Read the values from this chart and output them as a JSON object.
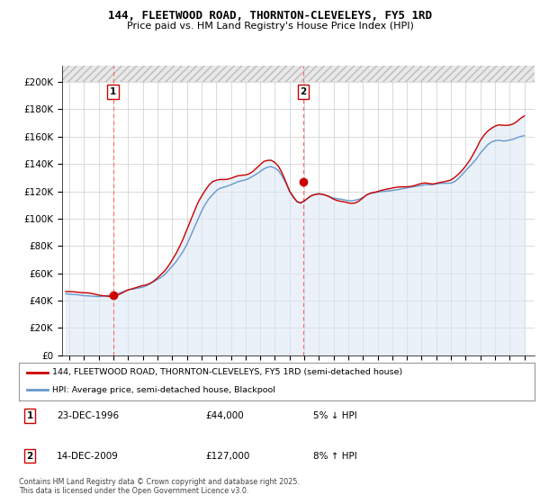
{
  "title": "144, FLEETWOOD ROAD, THORNTON-CLEVELEYS, FY5 1RD",
  "subtitle": "Price paid vs. HM Land Registry's House Price Index (HPI)",
  "ylabel_ticks": [
    "£0",
    "£20K",
    "£40K",
    "£60K",
    "£80K",
    "£100K",
    "£120K",
    "£140K",
    "£160K",
    "£180K",
    "£200K"
  ],
  "ytick_vals": [
    0,
    20000,
    40000,
    60000,
    80000,
    100000,
    120000,
    140000,
    160000,
    180000,
    200000
  ],
  "ymax": 200000,
  "ymin": 0,
  "sale1_price": 44000,
  "sale1_label": "1",
  "sale1_year": 1996.97,
  "sale2_price": 127000,
  "sale2_label": "2",
  "sale2_year": 2009.95,
  "legend_line1": "144, FLEETWOOD ROAD, THORNTON-CLEVELEYS, FY5 1RD (semi-detached house)",
  "legend_line2": "HPI: Average price, semi-detached house, Blackpool",
  "footnote": "Contains HM Land Registry data © Crown copyright and database right 2025.\nThis data is licensed under the Open Government Licence v3.0.",
  "line_color_red": "#cc0000",
  "line_color_blue": "#6699cc",
  "fill_color_blue": "#dce8f5",
  "marker_color_red": "#cc0000",
  "grid_color": "#cccccc",
  "vline_color": "#ff6666",
  "bg_color": "#ffffff",
  "xmin": 1993.5,
  "xmax": 2025.7,
  "hpi_data": [
    [
      1993.75,
      45500
    ],
    [
      1994.0,
      45200
    ],
    [
      1994.25,
      45000
    ],
    [
      1994.5,
      44800
    ],
    [
      1994.75,
      44500
    ],
    [
      1995.0,
      44000
    ],
    [
      1995.25,
      43800
    ],
    [
      1995.5,
      43500
    ],
    [
      1995.75,
      43200
    ],
    [
      1996.0,
      43000
    ],
    [
      1996.25,
      43200
    ],
    [
      1996.5,
      43500
    ],
    [
      1996.75,
      44000
    ],
    [
      1997.0,
      44500
    ],
    [
      1997.25,
      45200
    ],
    [
      1997.5,
      46000
    ],
    [
      1997.75,
      47000
    ],
    [
      1998.0,
      48000
    ],
    [
      1998.25,
      48500
    ],
    [
      1998.5,
      49000
    ],
    [
      1998.75,
      49500
    ],
    [
      1999.0,
      50000
    ],
    [
      1999.25,
      51000
    ],
    [
      1999.5,
      52500
    ],
    [
      1999.75,
      54000
    ],
    [
      2000.0,
      55500
    ],
    [
      2000.25,
      57000
    ],
    [
      2000.5,
      59000
    ],
    [
      2000.75,
      62000
    ],
    [
      2001.0,
      65000
    ],
    [
      2001.25,
      68000
    ],
    [
      2001.5,
      72000
    ],
    [
      2001.75,
      76000
    ],
    [
      2002.0,
      81000
    ],
    [
      2002.25,
      87000
    ],
    [
      2002.5,
      93000
    ],
    [
      2002.75,
      99000
    ],
    [
      2003.0,
      105000
    ],
    [
      2003.25,
      110000
    ],
    [
      2003.5,
      114000
    ],
    [
      2003.75,
      117000
    ],
    [
      2004.0,
      120000
    ],
    [
      2004.25,
      122000
    ],
    [
      2004.5,
      123000
    ],
    [
      2004.75,
      124000
    ],
    [
      2005.0,
      125000
    ],
    [
      2005.25,
      126000
    ],
    [
      2005.5,
      127000
    ],
    [
      2005.75,
      127500
    ],
    [
      2006.0,
      128000
    ],
    [
      2006.25,
      129000
    ],
    [
      2006.5,
      130500
    ],
    [
      2006.75,
      132000
    ],
    [
      2007.0,
      134000
    ],
    [
      2007.25,
      136000
    ],
    [
      2007.5,
      137500
    ],
    [
      2007.75,
      138000
    ],
    [
      2008.0,
      137000
    ],
    [
      2008.25,
      135000
    ],
    [
      2008.5,
      131000
    ],
    [
      2008.75,
      126000
    ],
    [
      2009.0,
      120000
    ],
    [
      2009.25,
      116000
    ],
    [
      2009.5,
      113000
    ],
    [
      2009.75,
      112000
    ],
    [
      2010.0,
      113000
    ],
    [
      2010.25,
      115000
    ],
    [
      2010.5,
      117000
    ],
    [
      2010.75,
      118000
    ],
    [
      2011.0,
      118500
    ],
    [
      2011.25,
      118000
    ],
    [
      2011.5,
      117000
    ],
    [
      2011.75,
      116000
    ],
    [
      2012.0,
      115000
    ],
    [
      2012.25,
      114500
    ],
    [
      2012.5,
      114000
    ],
    [
      2012.75,
      113500
    ],
    [
      2013.0,
      113000
    ],
    [
      2013.25,
      113000
    ],
    [
      2013.5,
      113500
    ],
    [
      2013.75,
      114000
    ],
    [
      2014.0,
      115000
    ],
    [
      2014.25,
      116500
    ],
    [
      2014.5,
      117500
    ],
    [
      2014.75,
      118000
    ],
    [
      2015.0,
      118500
    ],
    [
      2015.25,
      119000
    ],
    [
      2015.5,
      119500
    ],
    [
      2015.75,
      120000
    ],
    [
      2016.0,
      120500
    ],
    [
      2016.25,
      121000
    ],
    [
      2016.5,
      121500
    ],
    [
      2016.75,
      122000
    ],
    [
      2017.0,
      122500
    ],
    [
      2017.25,
      123000
    ],
    [
      2017.5,
      123500
    ],
    [
      2017.75,
      124000
    ],
    [
      2018.0,
      124500
    ],
    [
      2018.25,
      125000
    ],
    [
      2018.5,
      125000
    ],
    [
      2018.75,
      125000
    ],
    [
      2019.0,
      125500
    ],
    [
      2019.25,
      126000
    ],
    [
      2019.5,
      126000
    ],
    [
      2019.75,
      126000
    ],
    [
      2020.0,
      126000
    ],
    [
      2020.25,
      127000
    ],
    [
      2020.5,
      129000
    ],
    [
      2020.75,
      132000
    ],
    [
      2021.0,
      135000
    ],
    [
      2021.25,
      138000
    ],
    [
      2021.5,
      141000
    ],
    [
      2021.75,
      144000
    ],
    [
      2022.0,
      148000
    ],
    [
      2022.25,
      151000
    ],
    [
      2022.5,
      154000
    ],
    [
      2022.75,
      156000
    ],
    [
      2023.0,
      157000
    ],
    [
      2023.25,
      157500
    ],
    [
      2023.5,
      157000
    ],
    [
      2023.75,
      157000
    ],
    [
      2024.0,
      157500
    ],
    [
      2024.25,
      158000
    ],
    [
      2024.5,
      159000
    ],
    [
      2024.75,
      160000
    ],
    [
      2025.0,
      160500
    ]
  ],
  "price_data_smooth": [
    [
      1993.75,
      46000
    ],
    [
      1994.0,
      45800
    ],
    [
      1994.25,
      45500
    ],
    [
      1994.5,
      45200
    ],
    [
      1994.75,
      45000
    ],
    [
      1995.0,
      44800
    ],
    [
      1995.25,
      44600
    ],
    [
      1995.5,
      44400
    ],
    [
      1995.75,
      44200
    ],
    [
      1996.0,
      44000
    ],
    [
      1996.25,
      44000
    ],
    [
      1996.5,
      44200
    ],
    [
      1996.75,
      44400
    ],
    [
      1997.0,
      45000
    ],
    [
      1997.25,
      46000
    ],
    [
      1997.5,
      47000
    ],
    [
      1997.75,
      48000
    ],
    [
      1998.0,
      49000
    ],
    [
      1998.25,
      49500
    ],
    [
      1998.5,
      50000
    ],
    [
      1998.75,
      50500
    ],
    [
      1999.0,
      51200
    ],
    [
      1999.25,
      52200
    ],
    [
      1999.5,
      53500
    ],
    [
      1999.75,
      55500
    ],
    [
      2000.0,
      57500
    ],
    [
      2000.25,
      60000
    ],
    [
      2000.5,
      62500
    ],
    [
      2000.75,
      66000
    ],
    [
      2001.0,
      70000
    ],
    [
      2001.25,
      74000
    ],
    [
      2001.5,
      79000
    ],
    [
      2001.75,
      85000
    ],
    [
      2002.0,
      92000
    ],
    [
      2002.25,
      99000
    ],
    [
      2002.5,
      106000
    ],
    [
      2002.75,
      113000
    ],
    [
      2003.0,
      118000
    ],
    [
      2003.25,
      122000
    ],
    [
      2003.5,
      125000
    ],
    [
      2003.75,
      127000
    ],
    [
      2004.0,
      128000
    ],
    [
      2004.25,
      129000
    ],
    [
      2004.5,
      129500
    ],
    [
      2004.75,
      130000
    ],
    [
      2005.0,
      130500
    ],
    [
      2005.25,
      131000
    ],
    [
      2005.5,
      131500
    ],
    [
      2005.75,
      132000
    ],
    [
      2006.0,
      132500
    ],
    [
      2006.25,
      133500
    ],
    [
      2006.5,
      135000
    ],
    [
      2006.75,
      137000
    ],
    [
      2007.0,
      139000
    ],
    [
      2007.25,
      141000
    ],
    [
      2007.5,
      142000
    ],
    [
      2007.75,
      142500
    ],
    [
      2008.0,
      141000
    ],
    [
      2008.25,
      138000
    ],
    [
      2008.5,
      133000
    ],
    [
      2008.75,
      127000
    ],
    [
      2009.0,
      121000
    ],
    [
      2009.25,
      117000
    ],
    [
      2009.5,
      113000
    ],
    [
      2009.75,
      111000
    ],
    [
      2010.0,
      112000
    ],
    [
      2010.25,
      114000
    ],
    [
      2010.5,
      116000
    ],
    [
      2010.75,
      117000
    ],
    [
      2011.0,
      117500
    ],
    [
      2011.25,
      117000
    ],
    [
      2011.5,
      116000
    ],
    [
      2011.75,
      115000
    ],
    [
      2012.0,
      114000
    ],
    [
      2012.25,
      113500
    ],
    [
      2012.5,
      113000
    ],
    [
      2012.75,
      112500
    ],
    [
      2013.0,
      112000
    ],
    [
      2013.25,
      112000
    ],
    [
      2013.5,
      112500
    ],
    [
      2013.75,
      113500
    ],
    [
      2014.0,
      115000
    ],
    [
      2014.25,
      117000
    ],
    [
      2014.5,
      118500
    ],
    [
      2014.75,
      119500
    ],
    [
      2015.0,
      120000
    ],
    [
      2015.25,
      120500
    ],
    [
      2015.5,
      121000
    ],
    [
      2015.75,
      121500
    ],
    [
      2016.0,
      122000
    ],
    [
      2016.25,
      122500
    ],
    [
      2016.5,
      123000
    ],
    [
      2016.75,
      123500
    ],
    [
      2017.0,
      124000
    ],
    [
      2017.25,
      124500
    ],
    [
      2017.5,
      125000
    ],
    [
      2017.75,
      125500
    ],
    [
      2018.0,
      126000
    ],
    [
      2018.25,
      126500
    ],
    [
      2018.5,
      126500
    ],
    [
      2018.75,
      126500
    ],
    [
      2019.0,
      127000
    ],
    [
      2019.25,
      127500
    ],
    [
      2019.5,
      127500
    ],
    [
      2019.75,
      127500
    ],
    [
      2020.0,
      127500
    ],
    [
      2020.25,
      129000
    ],
    [
      2020.5,
      131500
    ],
    [
      2020.75,
      135000
    ],
    [
      2021.0,
      139000
    ],
    [
      2021.25,
      143000
    ],
    [
      2021.5,
      147000
    ],
    [
      2021.75,
      151000
    ],
    [
      2022.0,
      156000
    ],
    [
      2022.25,
      160000
    ],
    [
      2022.5,
      163500
    ],
    [
      2022.75,
      166000
    ],
    [
      2023.0,
      167500
    ],
    [
      2023.25,
      168000
    ],
    [
      2023.5,
      167500
    ],
    [
      2023.75,
      167500
    ],
    [
      2024.0,
      168000
    ],
    [
      2024.25,
      169000
    ],
    [
      2024.5,
      170500
    ],
    [
      2024.75,
      172000
    ],
    [
      2025.0,
      173000
    ]
  ]
}
